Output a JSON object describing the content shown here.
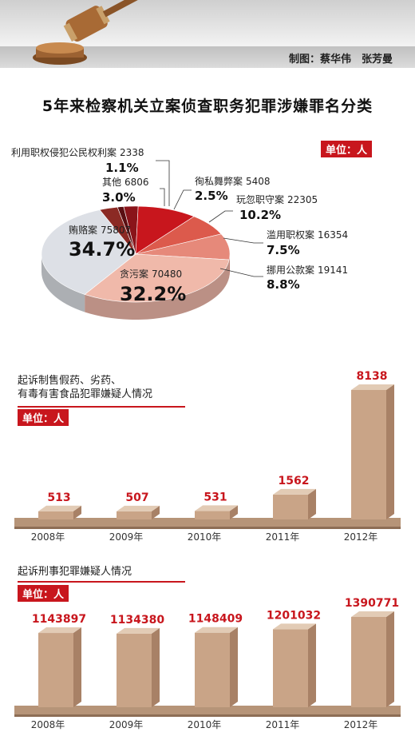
{
  "credit": "制图：蔡华伟　张芳曼",
  "main_title": "5年来检察机关立案侦查职务犯罪涉嫌罪名分类",
  "colors": {
    "accent": "#c8161d",
    "bar_front": "#c9a487",
    "bar_side": "#a88166",
    "bar_top": "#e2cbb5"
  },
  "chart_data": [
    {
      "type": "pie",
      "title": "",
      "unit_label": "单位：人",
      "slices": [
        {
          "label": "利用职权侵犯公民权利案",
          "value": 2338,
          "percent": "1.1%"
        },
        {
          "label": "徇私舞弊案",
          "value": 5408,
          "percent": "2.5%"
        },
        {
          "label": "玩忽职守案",
          "value": 22305,
          "percent": "10.2%"
        },
        {
          "label": "滥用职权案",
          "value": 16354,
          "percent": "7.5%"
        },
        {
          "label": "挪用公款案",
          "value": 19141,
          "percent": "8.8%"
        },
        {
          "label": "贪污案",
          "value": 70480,
          "percent": "32.2%"
        },
        {
          "label": "贿赂案",
          "value": 75807,
          "percent": "34.7%"
        },
        {
          "label": "其他",
          "value": 6806,
          "percent": "3.0%"
        }
      ]
    },
    {
      "type": "bar",
      "title": "起诉制售假药、劣药、有毒有害食品犯罪嫌疑人情况",
      "title_lines": [
        "起诉制售假药、劣药、",
        "有毒有害食品犯罪嫌疑人情况"
      ],
      "unit_label": "单位：人",
      "categories": [
        "2008年",
        "2009年",
        "2010年",
        "2011年",
        "2012年"
      ],
      "values": [
        513,
        507,
        531,
        1562,
        8138
      ],
      "value_labels": [
        "513",
        "507",
        "531",
        "1562",
        "8138"
      ]
    },
    {
      "type": "bar",
      "title": "起诉刑事犯罪嫌疑人情况",
      "unit_label": "单位：人",
      "categories": [
        "2008年",
        "2009年",
        "2010年",
        "2011年",
        "2012年"
      ],
      "values": [
        1143897,
        1134380,
        1148409,
        1201032,
        1390771
      ],
      "value_labels": [
        "1143897",
        "1134380",
        "1148409",
        "1201032",
        "1390771"
      ]
    }
  ]
}
